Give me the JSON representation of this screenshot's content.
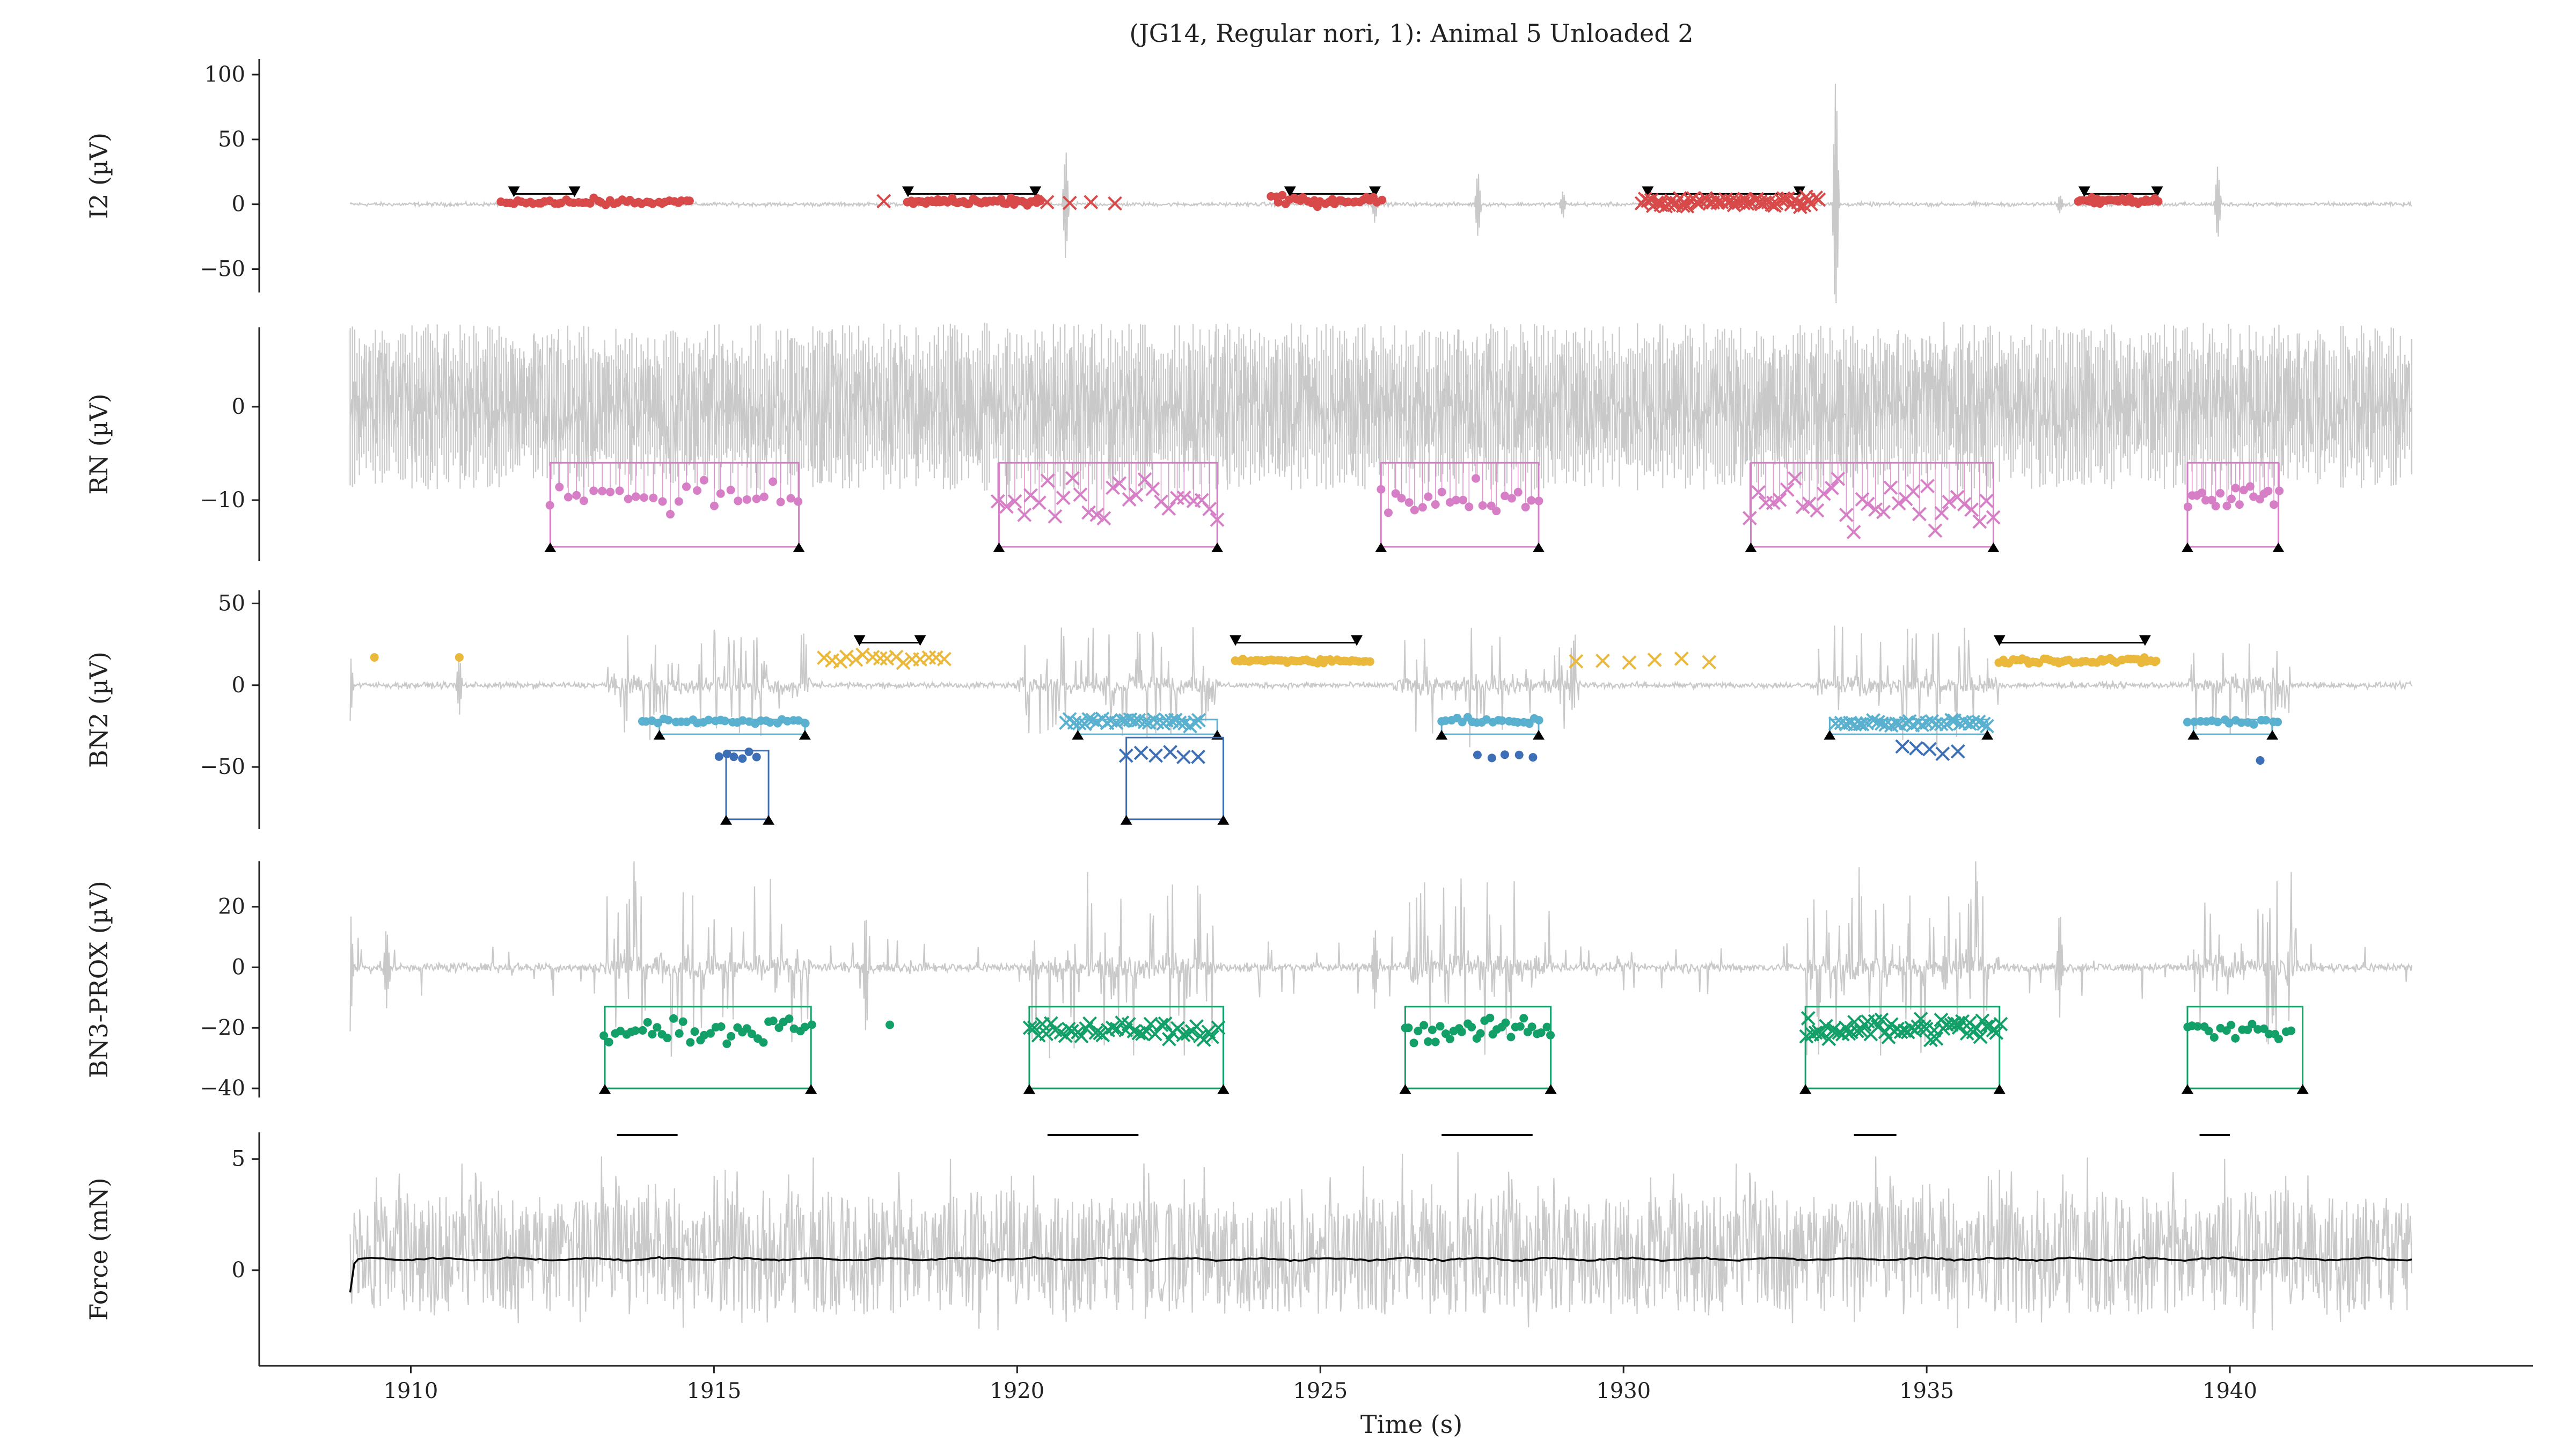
{
  "chart_data": {
    "type": "line",
    "title": "(JG14, Regular nori, 1): Animal 5 Unloaded 2",
    "xlabel": "Time (s)",
    "xlim": [
      1907.5,
      1945
    ],
    "xticks": [
      1910,
      1915,
      1920,
      1925,
      1930,
      1935,
      1940
    ],
    "trace_x_range": [
      1909.0,
      1943.0
    ],
    "colors": {
      "trace": "#c9c9c9",
      "I2": "#d84a4a",
      "RN": "#d67fc6",
      "BN2_small": "#5ab1cf",
      "BN2_large": "#3d6fb6",
      "BN2_yellow": "#eab83a",
      "BN3": "#13a068",
      "force_mean": "#000000",
      "event_bar": "#000000"
    },
    "panels": [
      {
        "id": "i2",
        "ylabel": "I2 (µV)",
        "ylim": [
          -68,
          112
        ],
        "yticks": [
          -50,
          0,
          50,
          100
        ],
        "noise": 1.2,
        "burst_noise": 0,
        "spike_rate": 0,
        "artifacts": [
          {
            "t": 1920.8,
            "amp": 45
          },
          {
            "t": 1925.9,
            "amp": 14
          },
          {
            "t": 1927.6,
            "amp": 28
          },
          {
            "t": 1929.0,
            "amp": 10
          },
          {
            "t": 1933.5,
            "amp": 105
          },
          {
            "t": 1937.2,
            "amp": 8
          },
          {
            "t": 1939.8,
            "amp": 30
          }
        ],
        "bursts": [],
        "markers": [
          {
            "color": "I2",
            "shape": "dot",
            "t0": 1911.5,
            "t1": 1914.6,
            "y": 2,
            "jitter": 2,
            "n": 48
          },
          {
            "color": "I2",
            "shape": "cross",
            "t0": 1917.8,
            "t1": 1917.9,
            "y": 1,
            "jitter": 1,
            "n": 1
          },
          {
            "color": "I2",
            "shape": "dot",
            "t0": 1918.2,
            "t1": 1920.4,
            "y": 2,
            "jitter": 2,
            "n": 55
          },
          {
            "color": "I2",
            "shape": "cross",
            "t0": 1920.5,
            "t1": 1921.6,
            "y": 1,
            "jitter": 1,
            "n": 4
          },
          {
            "color": "I2",
            "shape": "dot",
            "t0": 1924.2,
            "t1": 1926.0,
            "y": 3,
            "jitter": 3,
            "n": 32
          },
          {
            "color": "I2",
            "shape": "cross",
            "t0": 1930.3,
            "t1": 1933.2,
            "y": 2,
            "jitter": 3,
            "n": 62
          },
          {
            "color": "I2",
            "shape": "dot",
            "t0": 1937.5,
            "t1": 1938.8,
            "y": 3,
            "jitter": 2,
            "n": 30
          }
        ],
        "brackets": [
          {
            "color": "#000000",
            "t0": 1911.7,
            "t1": 1912.7,
            "y": 8,
            "style": "top"
          },
          {
            "color": "#000000",
            "t0": 1918.2,
            "t1": 1920.3,
            "y": 8,
            "style": "top"
          },
          {
            "color": "#000000",
            "t0": 1924.5,
            "t1": 1925.9,
            "y": 8,
            "style": "top"
          },
          {
            "color": "#000000",
            "t0": 1930.4,
            "t1": 1932.9,
            "y": 8,
            "style": "top"
          },
          {
            "color": "#000000",
            "t0": 1937.6,
            "t1": 1938.8,
            "y": 8,
            "style": "top"
          }
        ]
      },
      {
        "id": "rn",
        "ylabel": "RN (µV)",
        "ylim": [
          -16.5,
          8.5
        ],
        "yticks": [
          -10,
          0
        ],
        "noise": 2.4,
        "burst_noise": 0,
        "spike_rate": 0.7,
        "spike_amp": 6,
        "artifacts": [],
        "bursts": [],
        "markers": [
          {
            "color": "RN",
            "shape": "dot",
            "t0": 1912.3,
            "t1": 1916.4,
            "y": -9.5,
            "jitter": 1.5,
            "n": 30
          },
          {
            "color": "RN",
            "shape": "cross",
            "t0": 1919.7,
            "t1": 1923.3,
            "y": -10,
            "jitter": 2,
            "n": 28
          },
          {
            "color": "RN",
            "shape": "dot",
            "t0": 1926.0,
            "t1": 1928.6,
            "y": -10,
            "jitter": 1.5,
            "n": 24
          },
          {
            "color": "RN",
            "shape": "cross",
            "t0": 1932.1,
            "t1": 1936.1,
            "y": -10.5,
            "jitter": 2,
            "n": 34
          },
          {
            "color": "RN",
            "shape": "dot",
            "t0": 1939.3,
            "t1": 1940.8,
            "y": -9.5,
            "jitter": 1.2,
            "n": 20
          }
        ],
        "brackets": [
          {
            "color": "RN",
            "t0": 1912.3,
            "t1": 1916.4,
            "ytop": -6,
            "ybot": -15,
            "style": "box"
          },
          {
            "color": "RN",
            "t0": 1919.7,
            "t1": 1923.3,
            "ytop": -6,
            "ybot": -15,
            "style": "box"
          },
          {
            "color": "RN",
            "t0": 1926.0,
            "t1": 1928.6,
            "ytop": -6,
            "ybot": -15,
            "style": "box"
          },
          {
            "color": "RN",
            "t0": 1932.1,
            "t1": 1936.1,
            "ytop": -6,
            "ybot": -15,
            "style": "box"
          },
          {
            "color": "RN",
            "t0": 1939.3,
            "t1": 1940.8,
            "ytop": -6,
            "ybot": -15,
            "style": "box"
          }
        ]
      },
      {
        "id": "bn2",
        "ylabel": "BN2 (µV)",
        "ylim": [
          -88,
          58
        ],
        "yticks": [
          -50,
          0,
          50
        ],
        "noise": 1.5,
        "burst_noise": 4,
        "spike_rate": 0,
        "artifacts": [
          {
            "t": 1909.0,
            "amp": 22
          },
          {
            "t": 1910.8,
            "amp": 18
          }
        ],
        "bursts": [
          {
            "t0": 1913.2,
            "t1": 1916.6,
            "amp": 36
          },
          {
            "t0": 1920.0,
            "t1": 1923.3,
            "amp": 34
          },
          {
            "t0": 1926.2,
            "t1": 1929.3,
            "amp": 34
          },
          {
            "t0": 1933.2,
            "t1": 1936.2,
            "amp": 36
          },
          {
            "t0": 1939.3,
            "t1": 1941.0,
            "amp": 30
          }
        ],
        "markers": [
          {
            "color": "BN2_yellow",
            "shape": "dot",
            "t0": 1909.4,
            "t1": 1909.5,
            "y": 17,
            "jitter": 0,
            "n": 1
          },
          {
            "color": "BN2_yellow",
            "shape": "dot",
            "t0": 1910.8,
            "t1": 1910.9,
            "y": 17,
            "jitter": 0,
            "n": 1
          },
          {
            "color": "BN2_yellow",
            "shape": "cross",
            "t0": 1916.8,
            "t1": 1918.8,
            "y": 16,
            "jitter": 2,
            "n": 16
          },
          {
            "color": "BN2_yellow",
            "shape": "dot",
            "t0": 1923.6,
            "t1": 1925.8,
            "y": 15,
            "jitter": 1,
            "n": 42
          },
          {
            "color": "BN2_yellow",
            "shape": "cross",
            "t0": 1929.2,
            "t1": 1931.4,
            "y": 15,
            "jitter": 1.5,
            "n": 6
          },
          {
            "color": "BN2_yellow",
            "shape": "dot",
            "t0": 1936.2,
            "t1": 1938.8,
            "y": 15,
            "jitter": 1.5,
            "n": 48
          },
          {
            "color": "BN2_small",
            "shape": "dot",
            "t0": 1913.8,
            "t1": 1916.5,
            "y": -22,
            "jitter": 1.5,
            "n": 30
          },
          {
            "color": "BN2_large",
            "shape": "dot",
            "t0": 1915.1,
            "t1": 1915.7,
            "y": -43,
            "jitter": 3,
            "n": 6
          },
          {
            "color": "BN2_small",
            "shape": "cross",
            "t0": 1920.8,
            "t1": 1923.0,
            "y": -22,
            "jitter": 2,
            "n": 30
          },
          {
            "color": "BN2_large",
            "shape": "cross",
            "t0": 1921.8,
            "t1": 1923.0,
            "y": -42,
            "jitter": 3,
            "n": 6
          },
          {
            "color": "BN2_small",
            "shape": "dot",
            "t0": 1927.0,
            "t1": 1928.6,
            "y": -22,
            "jitter": 1.5,
            "n": 20
          },
          {
            "color": "BN2_large",
            "shape": "dot",
            "t0": 1927.6,
            "t1": 1928.5,
            "y": -44,
            "jitter": 2,
            "n": 5
          },
          {
            "color": "BN2_small",
            "shape": "cross",
            "t0": 1933.5,
            "t1": 1936.0,
            "y": -23,
            "jitter": 2,
            "n": 34
          },
          {
            "color": "BN2_large",
            "shape": "cross",
            "t0": 1934.6,
            "t1": 1935.5,
            "y": -41,
            "jitter": 3,
            "n": 5
          },
          {
            "color": "BN2_small",
            "shape": "dot",
            "t0": 1939.3,
            "t1": 1940.8,
            "y": -22,
            "jitter": 1.5,
            "n": 16
          },
          {
            "color": "BN2_large",
            "shape": "dot",
            "t0": 1940.5,
            "t1": 1940.7,
            "y": -46,
            "jitter": 0,
            "n": 1
          }
        ],
        "brackets": [
          {
            "color": "#000000",
            "t0": 1917.4,
            "t1": 1918.4,
            "y": 26,
            "style": "top"
          },
          {
            "color": "#000000",
            "t0": 1923.6,
            "t1": 1925.6,
            "y": 26,
            "style": "top"
          },
          {
            "color": "#000000",
            "t0": 1936.2,
            "t1": 1938.6,
            "y": 26,
            "style": "top"
          },
          {
            "color": "BN2_small",
            "t0": 1914.1,
            "t1": 1916.5,
            "ytop": -21,
            "ybot": -30,
            "style": "box"
          },
          {
            "color": "BN2_large",
            "t0": 1915.2,
            "t1": 1915.9,
            "ytop": -40,
            "ybot": -82,
            "style": "box"
          },
          {
            "color": "BN2_small",
            "t0": 1921.0,
            "t1": 1923.3,
            "ytop": -21,
            "ybot": -30,
            "style": "box"
          },
          {
            "color": "BN2_large",
            "t0": 1921.8,
            "t1": 1923.4,
            "ytop": -32,
            "ybot": -82,
            "style": "box"
          },
          {
            "color": "BN2_small",
            "t0": 1927.0,
            "t1": 1928.6,
            "ytop": -21,
            "ybot": -30,
            "style": "box"
          },
          {
            "color": "BN2_small",
            "t0": 1933.4,
            "t1": 1936.0,
            "ytop": -21,
            "ybot": -30,
            "style": "box"
          },
          {
            "color": "BN2_small",
            "t0": 1939.4,
            "t1": 1940.7,
            "ytop": -21,
            "ybot": -30,
            "style": "box"
          }
        ]
      },
      {
        "id": "bn3",
        "ylabel": "BN3-PROX (µV)",
        "ylim": [
          -43,
          35
        ],
        "yticks": [
          -40,
          -20,
          0,
          20
        ],
        "noise": 1.2,
        "burst_noise": 3,
        "spike_rate": 0.05,
        "spike_amp": 10,
        "artifacts": [
          {
            "t": 1909.0,
            "amp": 22
          },
          {
            "t": 1909.6,
            "amp": 14
          },
          {
            "t": 1917.5,
            "amp": 20
          },
          {
            "t": 1925.9,
            "amp": 14
          },
          {
            "t": 1935.3,
            "amp": 8
          },
          {
            "t": 1937.2,
            "amp": 18
          }
        ],
        "bursts": [
          {
            "t0": 1913.2,
            "t1": 1916.6,
            "amp": 30
          },
          {
            "t0": 1920.2,
            "t1": 1923.3,
            "amp": 30
          },
          {
            "t0": 1926.4,
            "t1": 1928.8,
            "amp": 28
          },
          {
            "t0": 1933.0,
            "t1": 1936.2,
            "amp": 30
          },
          {
            "t0": 1939.3,
            "t1": 1941.1,
            "amp": 28
          }
        ],
        "markers": [
          {
            "color": "BN3",
            "shape": "dot",
            "t0": 1913.2,
            "t1": 1916.6,
            "y": -21,
            "jitter": 3,
            "n": 40
          },
          {
            "color": "BN3",
            "shape": "dot",
            "t0": 1917.9,
            "t1": 1918.0,
            "y": -19,
            "jitter": 0,
            "n": 1
          },
          {
            "color": "BN3",
            "shape": "cross",
            "t0": 1920.2,
            "t1": 1923.3,
            "y": -21,
            "jitter": 2.5,
            "n": 44
          },
          {
            "color": "BN3",
            "shape": "dot",
            "t0": 1926.4,
            "t1": 1928.8,
            "y": -21,
            "jitter": 3,
            "n": 34
          },
          {
            "color": "BN3",
            "shape": "cross",
            "t0": 1933.0,
            "t1": 1936.2,
            "y": -20,
            "jitter": 3,
            "n": 60
          },
          {
            "color": "BN3",
            "shape": "dot",
            "t0": 1939.3,
            "t1": 1941.0,
            "y": -21,
            "jitter": 2.5,
            "n": 20
          }
        ],
        "brackets": [
          {
            "color": "BN3",
            "t0": 1913.2,
            "t1": 1916.6,
            "ytop": -13,
            "ybot": -40,
            "style": "box"
          },
          {
            "color": "BN3",
            "t0": 1920.2,
            "t1": 1923.4,
            "ytop": -13,
            "ybot": -40,
            "style": "box"
          },
          {
            "color": "BN3",
            "t0": 1926.4,
            "t1": 1928.8,
            "ytop": -13,
            "ybot": -40,
            "style": "box"
          },
          {
            "color": "BN3",
            "t0": 1933.0,
            "t1": 1936.2,
            "ytop": -13,
            "ybot": -40,
            "style": "box"
          },
          {
            "color": "BN3",
            "t0": 1939.3,
            "t1": 1941.2,
            "ytop": -13,
            "ybot": -40,
            "style": "box"
          }
        ]
      },
      {
        "id": "force",
        "ylabel": "Force (mN)",
        "ylim": [
          -4.3,
          6.2
        ],
        "yticks": [
          0,
          5
        ],
        "noise": 1.6,
        "burst_noise": 0,
        "spike_rate": 0.25,
        "spike_amp": 3,
        "band": [
          -2.0,
          3.3
        ],
        "mean_line": 0.5,
        "artifacts": [],
        "bursts": [],
        "markers": [],
        "brackets": [],
        "event_bars": [
          [
            1913.4,
            1914.4
          ],
          [
            1920.5,
            1922.0
          ],
          [
            1927.0,
            1928.5
          ],
          [
            1933.8,
            1934.5
          ],
          [
            1939.5,
            1940.0
          ]
        ]
      }
    ]
  }
}
